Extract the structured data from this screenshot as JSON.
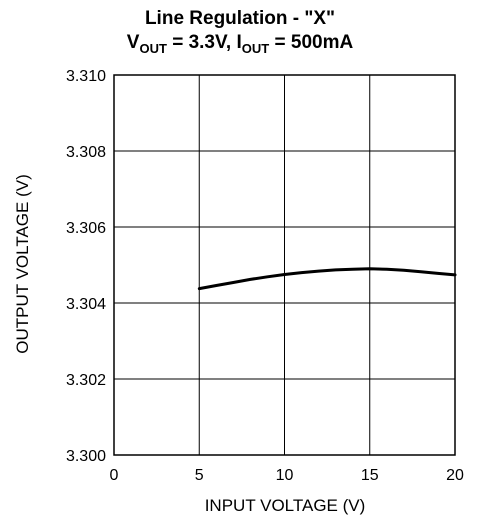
{
  "chart_data": {
    "type": "line",
    "title": {
      "line1": "Line Regulation - \"X\"",
      "line2_vout_main": "V",
      "line2_vout_sub": "OUT",
      "line2_vout_value": " = 3.3V, ",
      "line2_iout_main": "I",
      "line2_iout_sub": "OUT",
      "line2_iout_value": " = 500mA"
    },
    "xlabel": "INPUT VOLTAGE (V)",
    "ylabel": "OUTPUT VOLTAGE (V)",
    "xlim": [
      0,
      20
    ],
    "ylim": [
      3.3,
      3.31
    ],
    "xticks": [
      {
        "value": 0,
        "label": "0"
      },
      {
        "value": 5,
        "label": "5"
      },
      {
        "value": 10,
        "label": "10"
      },
      {
        "value": 15,
        "label": "15"
      },
      {
        "value": 20,
        "label": "20"
      }
    ],
    "yticks": [
      {
        "value": 3.3,
        "label": "3.300"
      },
      {
        "value": 3.302,
        "label": "3.302"
      },
      {
        "value": 3.304,
        "label": "3.304"
      },
      {
        "value": 3.306,
        "label": "3.306"
      },
      {
        "value": 3.308,
        "label": "3.308"
      },
      {
        "value": 3.31,
        "label": "3.310"
      }
    ],
    "grid": true,
    "series": [
      {
        "color": "#000000",
        "x": [
          5,
          6,
          7,
          8,
          9,
          10,
          11,
          12,
          13,
          14,
          15,
          16,
          17,
          18,
          19,
          20
        ],
        "y": [
          3.30438,
          3.30446,
          3.30454,
          3.30462,
          3.30469,
          3.30475,
          3.3048,
          3.30484,
          3.30487,
          3.30489,
          3.3049,
          3.30489,
          3.30486,
          3.30482,
          3.30478,
          3.30474
        ]
      }
    ]
  }
}
